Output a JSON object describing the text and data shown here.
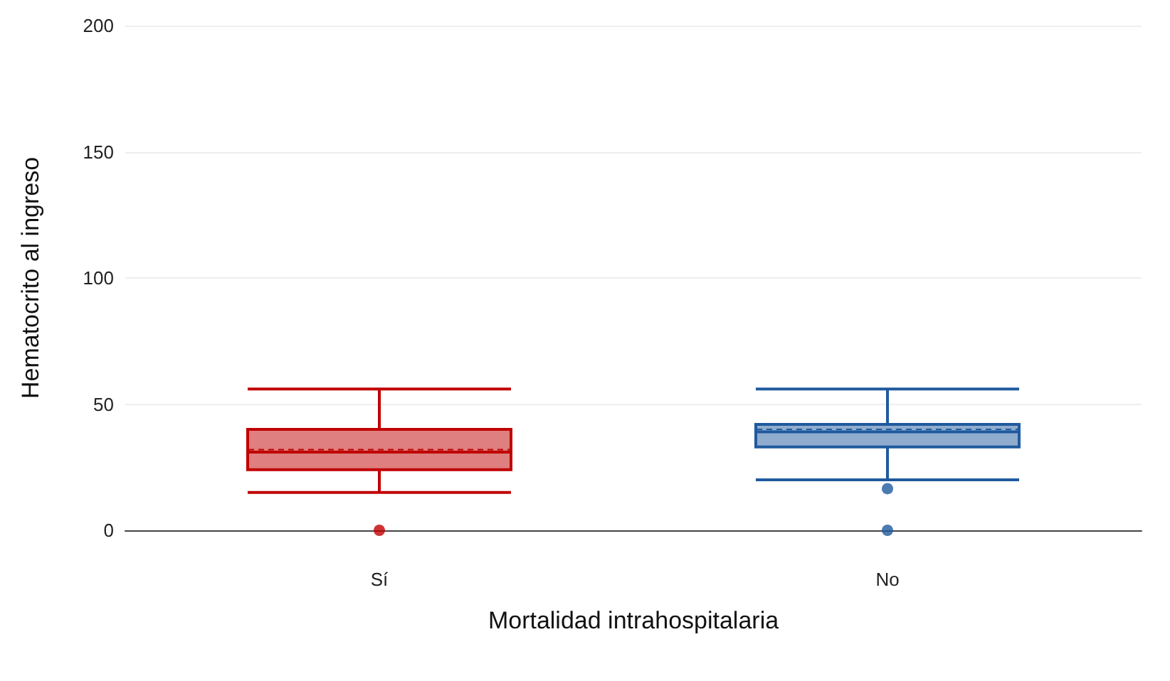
{
  "chart_data": {
    "type": "box",
    "xlabel": "Mortalidad intrahospitalaria",
    "ylabel": "Hematocrito al ingreso",
    "categories": [
      "Sí",
      "No"
    ],
    "boxes": [
      {
        "low": 15,
        "q1": 24,
        "median": 31,
        "q3": 40,
        "high": 56,
        "mean": 32,
        "outliers": [
          0
        ]
      },
      {
        "low": 20,
        "q1": 33,
        "median": 39,
        "q3": 42,
        "high": 56,
        "mean": 40,
        "outliers": [
          16.5,
          0
        ]
      }
    ],
    "colors": [
      "#c00000",
      "#1f5a9e"
    ],
    "ylim": [
      0,
      200
    ],
    "yticks": [
      0,
      50,
      100,
      150,
      200
    ],
    "grid": "y"
  }
}
